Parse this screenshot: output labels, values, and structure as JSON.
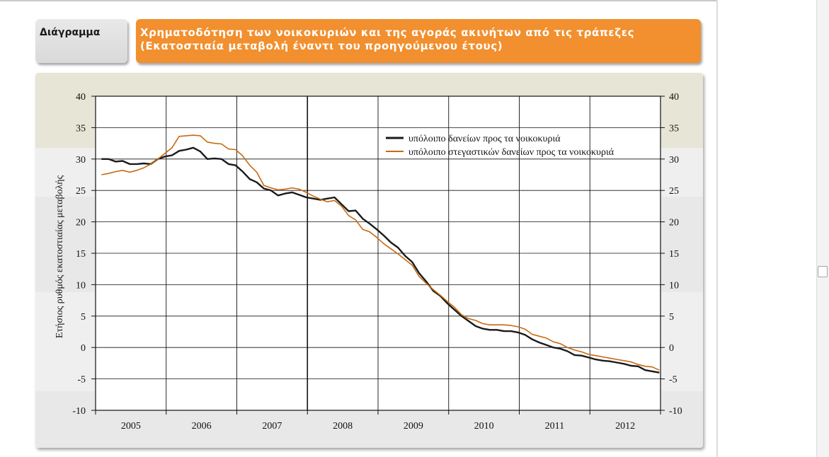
{
  "header": {
    "tab_label": "Διάγραμμα",
    "title_line1": "Χρηματοδότηση των νοικοκυριών και της αγοράς ακινήτων από τις τράπεζες",
    "title_line2": "(Εκατοστιαία μεταβολή έναντι του προηγούμενου έτους)"
  },
  "colors": {
    "accent": "#f28f2e",
    "series_total": "#1a1a1a",
    "series_housing": "#c8690f"
  },
  "chart_data": {
    "type": "line",
    "title": "Χρηματοδότηση των νοικοκυριών και της αγοράς ακινήτων από τις τράπεζες",
    "subtitle": "(Εκατοστιαία μεταβολή έναντι του προηγούμενου έτους)",
    "xlabel": "",
    "ylabel": "Ετήσιος ρυθμός εκατοστιαίας μεταβολής",
    "ylim": [
      -10,
      40
    ],
    "yticks": [
      "40",
      "35",
      "30",
      "25",
      "20",
      "15",
      "10",
      "5",
      "0",
      "-5",
      "-10"
    ],
    "x_range": [
      2004.917,
      2012.917
    ],
    "x_categories": [
      "2005",
      "2006",
      "2007",
      "2008",
      "2009",
      "2010",
      "2011",
      "2012"
    ],
    "legend": "top-right",
    "series": [
      {
        "name": "υπόλοιπο δανείων προς τα νοικοκυριά",
        "x": [
          2005.0,
          2005.1,
          2005.2,
          2005.3,
          2005.4,
          2005.5,
          2005.6,
          2005.7,
          2005.8,
          2005.9,
          2006.0,
          2006.1,
          2006.2,
          2006.3,
          2006.4,
          2006.5,
          2006.6,
          2006.7,
          2006.8,
          2006.9,
          2007.0,
          2007.1,
          2007.2,
          2007.3,
          2007.4,
          2007.5,
          2007.6,
          2007.7,
          2007.8,
          2007.9,
          2008.0,
          2008.1,
          2008.2,
          2008.3,
          2008.4,
          2008.5,
          2008.6,
          2008.7,
          2008.8,
          2008.9,
          2009.0,
          2009.1,
          2009.2,
          2009.3,
          2009.4,
          2009.5,
          2009.6,
          2009.7,
          2009.8,
          2009.9,
          2010.0,
          2010.1,
          2010.2,
          2010.3,
          2010.4,
          2010.5,
          2010.6,
          2010.7,
          2010.8,
          2010.9,
          2011.0,
          2011.1,
          2011.2,
          2011.3,
          2011.4,
          2011.5,
          2011.6,
          2011.7,
          2011.8,
          2011.9,
          2012.0,
          2012.1,
          2012.2,
          2012.3,
          2012.4,
          2012.5,
          2012.6,
          2012.7,
          2012.8
        ],
        "values": [
          30.0,
          30.0,
          29.6,
          29.7,
          29.2,
          29.2,
          29.3,
          29.2,
          30.0,
          30.4,
          30.6,
          31.3,
          31.5,
          31.8,
          31.2,
          30.0,
          30.1,
          30.0,
          29.2,
          29.0,
          28.0,
          26.8,
          26.3,
          25.3,
          25.0,
          24.2,
          24.5,
          24.7,
          24.3,
          23.9,
          23.7,
          23.5,
          23.7,
          23.9,
          22.8,
          21.7,
          21.8,
          20.5,
          19.7,
          18.8,
          17.8,
          16.7,
          15.9,
          14.6,
          13.6,
          11.8,
          10.5,
          9.0,
          8.2,
          7.0,
          6.0,
          5.0,
          4.2,
          3.4,
          3.0,
          2.8,
          2.8,
          2.6,
          2.6,
          2.4,
          2.0,
          1.3,
          0.8,
          0.4,
          0.0,
          -0.2,
          -0.6,
          -1.2,
          -1.3,
          -1.6,
          -1.9,
          -2.1,
          -2.2,
          -2.4,
          -2.6,
          -2.9,
          -3.0,
          -3.6,
          -3.8
        ]
      },
      {
        "name": "υπόλοιπο στεγαστικών δανείων προς τα νοικοκυριά",
        "x": [
          2005.0,
          2005.1,
          2005.2,
          2005.3,
          2005.4,
          2005.5,
          2005.6,
          2005.7,
          2005.8,
          2005.9,
          2006.0,
          2006.1,
          2006.2,
          2006.3,
          2006.4,
          2006.5,
          2006.6,
          2006.7,
          2006.8,
          2006.9,
          2007.0,
          2007.1,
          2007.2,
          2007.3,
          2007.4,
          2007.5,
          2007.6,
          2007.7,
          2007.8,
          2007.9,
          2008.0,
          2008.1,
          2008.2,
          2008.3,
          2008.4,
          2008.5,
          2008.6,
          2008.7,
          2008.8,
          2008.9,
          2009.0,
          2009.1,
          2009.2,
          2009.3,
          2009.4,
          2009.5,
          2009.6,
          2009.7,
          2009.8,
          2009.9,
          2010.0,
          2010.1,
          2010.2,
          2010.3,
          2010.4,
          2010.5,
          2010.6,
          2010.7,
          2010.8,
          2010.9,
          2011.0,
          2011.1,
          2011.2,
          2011.3,
          2011.4,
          2011.5,
          2011.6,
          2011.7,
          2011.8,
          2011.9,
          2012.0,
          2012.1,
          2012.2,
          2012.3,
          2012.4,
          2012.5,
          2012.6,
          2012.7,
          2012.8
        ],
        "values": [
          27.5,
          27.7,
          28.0,
          28.2,
          27.9,
          28.2,
          28.6,
          29.2,
          30.0,
          30.9,
          31.8,
          33.6,
          33.7,
          33.8,
          33.7,
          32.7,
          32.5,
          32.4,
          31.6,
          31.5,
          30.5,
          29.0,
          27.9,
          25.8,
          25.4,
          25.1,
          25.2,
          25.4,
          25.2,
          24.7,
          24.1,
          23.6,
          23.2,
          23.4,
          22.5,
          21.0,
          20.3,
          18.8,
          18.4,
          17.5,
          16.5,
          15.7,
          14.9,
          14.0,
          13.1,
          11.3,
          10.2,
          9.2,
          8.3,
          7.3,
          6.4,
          5.2,
          4.6,
          4.3,
          3.8,
          3.6,
          3.6,
          3.6,
          3.5,
          3.3,
          2.9,
          2.1,
          1.8,
          1.5,
          0.9,
          0.6,
          0.0,
          -0.4,
          -0.7,
          -1.1,
          -1.3,
          -1.5,
          -1.7,
          -1.9,
          -2.1,
          -2.3,
          -2.7,
          -3.0,
          -3.1
        ]
      }
    ],
    "series_display_notes": "values read from the right axis; 2012 tail continues",
    "tail": {
      "x": [
        2012.9
      ],
      "total": [
        -4.0
      ],
      "housing": [
        -3.6
      ]
    }
  }
}
